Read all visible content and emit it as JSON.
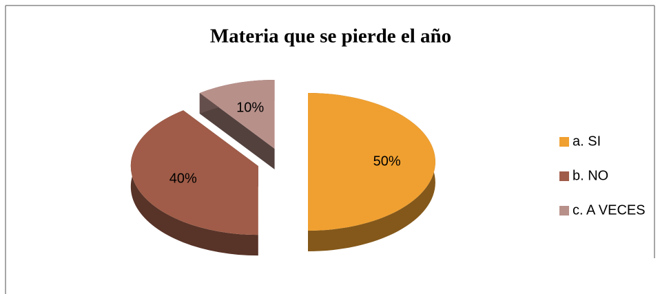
{
  "chart_data": {
    "type": "pie",
    "title": "Materia que se pierde el año",
    "categories": [
      "a. SI",
      "b. NO",
      "c. A VECES"
    ],
    "values": [
      50,
      40,
      10
    ],
    "value_labels": [
      "50%",
      "40%",
      "10%"
    ],
    "colors": [
      "#f0a030",
      "#a05c48",
      "#b8908a"
    ],
    "legend": "right"
  }
}
